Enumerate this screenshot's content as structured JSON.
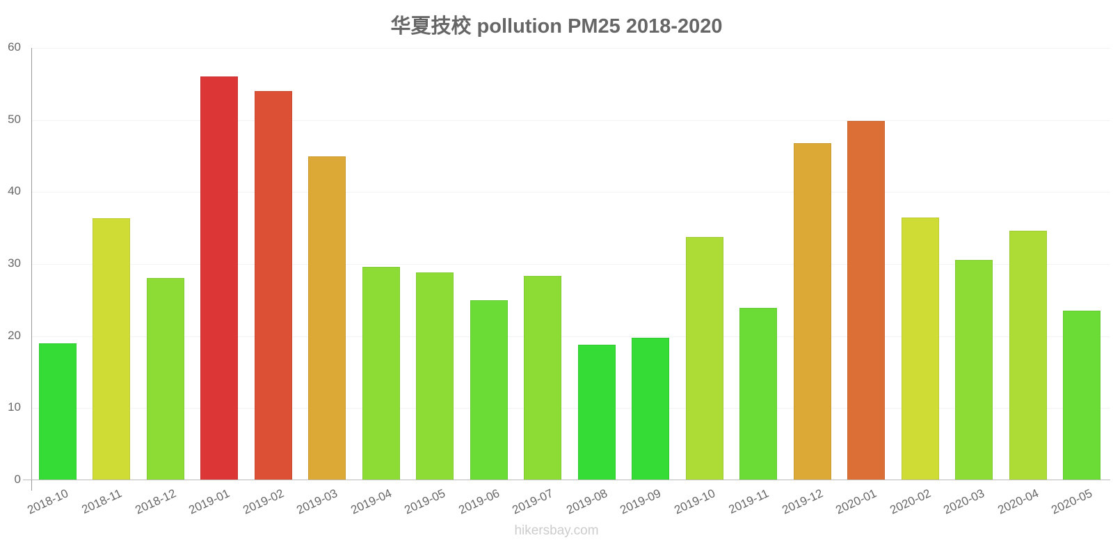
{
  "title": "华夏技校 pollution PM25 2018-2020",
  "footer": "hikersbay.com",
  "chart_data": {
    "type": "bar",
    "title": "华夏技校 pollution PM25 2018-2020",
    "xlabel": "",
    "ylabel": "",
    "ylim": [
      0,
      60
    ],
    "yticks": [
      0,
      10,
      20,
      30,
      40,
      50,
      60
    ],
    "grid": true,
    "legend": null,
    "categories": [
      "2018-10",
      "2018-11",
      "2018-12",
      "2019-01",
      "2019-02",
      "2019-03",
      "2019-04",
      "2019-05",
      "2019-06",
      "2019-07",
      "2019-08",
      "2019-09",
      "2019-10",
      "2019-11",
      "2019-12",
      "2020-01",
      "2020-02",
      "2020-03",
      "2020-04",
      "2020-05"
    ],
    "values": [
      19,
      36.4,
      28.1,
      56,
      54,
      45,
      29.6,
      28.8,
      25,
      28.4,
      18.8,
      19.8,
      33.8,
      23.9,
      46.8,
      49.9,
      36.5,
      30.6,
      34.6,
      23.5
    ],
    "colors": [
      "#36dc36",
      "#cfdc36",
      "#8ddc36",
      "#dc3636",
      "#dc5036",
      "#dca936",
      "#8ddc36",
      "#8ddc36",
      "#6bdc36",
      "#8ddc36",
      "#36dc36",
      "#36dc36",
      "#addc36",
      "#6bdc36",
      "#dca936",
      "#dc6f36",
      "#cfdc36",
      "#8ddc36",
      "#addc36",
      "#6bdc36"
    ]
  }
}
